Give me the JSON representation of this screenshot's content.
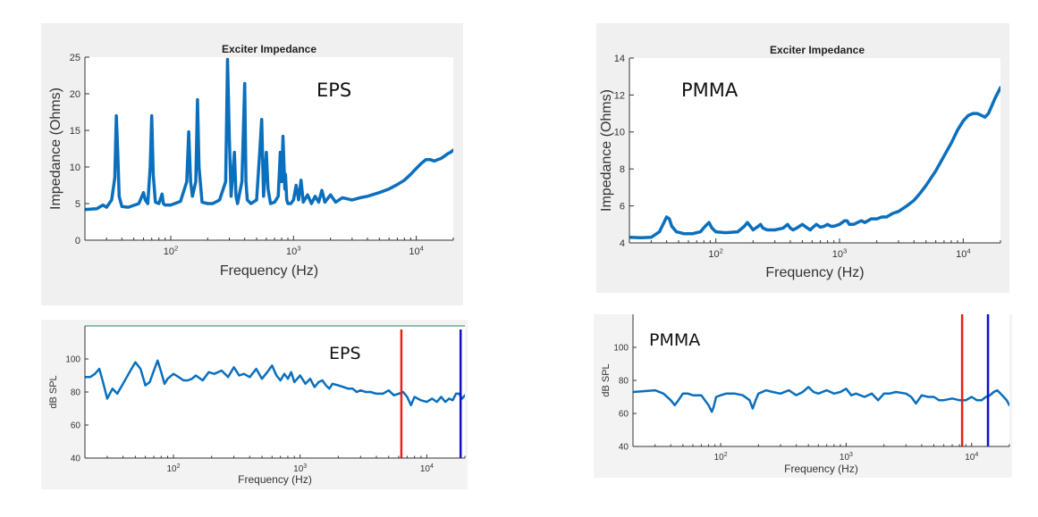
{
  "chart_data": [
    {
      "id": "eps-impedance",
      "type": "line",
      "title": "Exciter Impedance",
      "annotation": "EPS",
      "xlabel": "Frequency (Hz)",
      "ylabel": "Impedance (Ohms)",
      "xscale": "log",
      "xlim": [
        20,
        20000
      ],
      "ylim": [
        0,
        25
      ],
      "yticks": [
        0,
        5,
        10,
        15,
        20,
        25
      ],
      "xticks": [
        {
          "value": 100,
          "base": "10",
          "exp": "2"
        },
        {
          "value": 1000,
          "base": "10",
          "exp": "3"
        },
        {
          "value": 10000,
          "base": "10",
          "exp": "4"
        }
      ],
      "grid": false,
      "line_color": "#0a6fbd",
      "x": [
        20,
        25,
        28,
        30,
        33,
        35,
        36,
        37,
        38,
        40,
        45,
        55,
        60,
        62,
        65,
        68,
        70,
        72,
        75,
        80,
        85,
        87,
        90,
        100,
        120,
        135,
        140,
        145,
        150,
        160,
        165,
        170,
        180,
        200,
        220,
        250,
        280,
        290,
        300,
        310,
        330,
        340,
        350,
        380,
        400,
        410,
        420,
        450,
        500,
        530,
        550,
        570,
        600,
        620,
        650,
        700,
        750,
        780,
        800,
        820,
        850,
        860,
        880,
        900,
        950,
        1000,
        1050,
        1100,
        1150,
        1200,
        1300,
        1400,
        1500,
        1600,
        1700,
        1800,
        2000,
        2200,
        2500,
        3000,
        3500,
        4000,
        5000,
        6000,
        7000,
        8000,
        9000,
        10000,
        11000,
        12000,
        13000,
        14000,
        15000,
        16000,
        17000,
        18000,
        19000,
        20000
      ],
      "y": [
        4.2,
        4.3,
        4.8,
        4.5,
        5.5,
        8.5,
        17.0,
        12.0,
        6.0,
        4.6,
        4.5,
        5.0,
        6.5,
        5.5,
        5.0,
        10.0,
        17.0,
        9.0,
        5.2,
        5.0,
        6.3,
        5.0,
        4.8,
        4.8,
        5.3,
        8.0,
        14.8,
        8.0,
        6.0,
        8.0,
        19.2,
        10.0,
        5.2,
        5.0,
        5.0,
        5.5,
        8.0,
        24.7,
        14.0,
        6.0,
        12.0,
        6.0,
        5.0,
        8.0,
        21.4,
        8.0,
        5.5,
        5.0,
        5.5,
        12.0,
        16.5,
        6.0,
        12.0,
        7.0,
        5.0,
        5.2,
        6.0,
        12.0,
        8.0,
        14.2,
        7.0,
        9.0,
        5.5,
        5.0,
        5.0,
        5.5,
        7.5,
        5.5,
        8.2,
        5.2,
        6.2,
        5.0,
        6.0,
        5.2,
        6.8,
        5.2,
        6.2,
        5.2,
        5.8,
        5.5,
        5.8,
        6.0,
        6.5,
        7.0,
        7.6,
        8.2,
        9.0,
        9.8,
        10.5,
        11.0,
        11.0,
        10.8,
        11.0,
        11.2,
        11.5,
        11.8,
        12.0,
        12.3
      ]
    },
    {
      "id": "pmma-impedance",
      "type": "line",
      "title": "Exciter Impedance",
      "annotation": "PMMA",
      "xlabel": "Frequency (Hz)",
      "ylabel": "Impedance (Ohms)",
      "xscale": "log",
      "xlim": [
        20,
        20000
      ],
      "ylim": [
        4,
        14
      ],
      "yticks": [
        4,
        6,
        8,
        10,
        12,
        14
      ],
      "xticks": [
        {
          "value": 100,
          "base": "10",
          "exp": "2"
        },
        {
          "value": 1000,
          "base": "10",
          "exp": "3"
        },
        {
          "value": 10000,
          "base": "10",
          "exp": "4"
        }
      ],
      "grid": false,
      "line_color": "#0a6fbd",
      "x": [
        20,
        25,
        30,
        35,
        38,
        40,
        42,
        44,
        48,
        55,
        65,
        75,
        82,
        88,
        93,
        100,
        120,
        150,
        170,
        180,
        190,
        200,
        220,
        230,
        240,
        260,
        300,
        350,
        380,
        400,
        420,
        450,
        500,
        550,
        580,
        600,
        650,
        700,
        750,
        800,
        850,
        900,
        1000,
        1100,
        1150,
        1200,
        1300,
        1400,
        1500,
        1600,
        1700,
        1800,
        2000,
        2200,
        2400,
        2700,
        3000,
        3500,
        4000,
        4500,
        5000,
        6000,
        7000,
        8000,
        9000,
        10000,
        11000,
        12000,
        13000,
        14000,
        15000,
        16000,
        17000,
        18000,
        19000,
        20000
      ],
      "y": [
        4.3,
        4.28,
        4.3,
        4.6,
        5.1,
        5.4,
        5.3,
        4.9,
        4.6,
        4.5,
        4.5,
        4.6,
        4.9,
        5.1,
        4.8,
        4.6,
        4.55,
        4.6,
        4.9,
        5.1,
        4.9,
        4.7,
        4.9,
        5.0,
        4.8,
        4.7,
        4.7,
        4.8,
        5.0,
        4.8,
        4.7,
        4.8,
        5.0,
        4.8,
        4.7,
        4.8,
        5.0,
        4.85,
        4.9,
        5.0,
        4.9,
        4.9,
        5.0,
        5.2,
        5.2,
        5.0,
        5.0,
        5.1,
        5.2,
        5.1,
        5.2,
        5.3,
        5.3,
        5.4,
        5.4,
        5.6,
        5.7,
        6.0,
        6.3,
        6.7,
        7.1,
        7.9,
        8.7,
        9.4,
        10.1,
        10.6,
        10.9,
        11.0,
        11.0,
        10.9,
        10.8,
        11.0,
        11.4,
        11.8,
        12.1,
        12.4
      ]
    },
    {
      "id": "eps-spl",
      "type": "line",
      "title": "",
      "annotation": "EPS",
      "xlabel": "Frequency (Hz)",
      "ylabel": "dB SPL",
      "xscale": "log",
      "xlim": [
        20,
        20000
      ],
      "ylim": [
        40,
        120
      ],
      "yticks": [
        40,
        60,
        80,
        100
      ],
      "xticks": [
        {
          "value": 100,
          "base": "10",
          "exp": "2"
        },
        {
          "value": 1000,
          "base": "10",
          "exp": "3"
        },
        {
          "value": 10000,
          "base": "10",
          "exp": "4"
        }
      ],
      "grid": false,
      "line_color": "#0a6fbd",
      "markers": [
        {
          "x": 6300,
          "color": "#e8211b"
        },
        {
          "x": 18500,
          "color": "#1010c8"
        }
      ],
      "x": [
        20,
        22,
        24,
        26,
        28,
        30,
        33,
        36,
        40,
        45,
        50,
        55,
        60,
        65,
        70,
        75,
        80,
        85,
        90,
        100,
        110,
        120,
        130,
        140,
        150,
        170,
        190,
        210,
        240,
        270,
        300,
        330,
        360,
        400,
        450,
        500,
        550,
        600,
        650,
        700,
        750,
        800,
        850,
        900,
        1000,
        1100,
        1200,
        1300,
        1400,
        1500,
        1600,
        1700,
        1800,
        2000,
        2200,
        2400,
        2600,
        2800,
        3000,
        3300,
        3600,
        4000,
        4500,
        5000,
        5500,
        6000,
        6500,
        7000,
        7500,
        8000,
        9000,
        10000,
        11000,
        12000,
        13000,
        14000,
        15000,
        16000,
        17000,
        18000,
        19000,
        20000
      ],
      "y": [
        89,
        89,
        91,
        94,
        85,
        76,
        82,
        79,
        85,
        92,
        98,
        94,
        84,
        86,
        93,
        99,
        92,
        85,
        88,
        91,
        89,
        87,
        87,
        88,
        90,
        87,
        92,
        91,
        93,
        89,
        95,
        90,
        91,
        89,
        94,
        88,
        92,
        96,
        90,
        87,
        91,
        88,
        92,
        86,
        90,
        85,
        88,
        83,
        86,
        87,
        84,
        82,
        85,
        84,
        83,
        82,
        82,
        80,
        81,
        80,
        80,
        79,
        79,
        81,
        78,
        79,
        80,
        77,
        72,
        77,
        75,
        74,
        76,
        74,
        77,
        74,
        76,
        75,
        79,
        79,
        76,
        78
      ]
    },
    {
      "id": "pmma-spl",
      "type": "line",
      "title": "",
      "annotation": "PMMA",
      "xlabel": "Frequency (Hz)",
      "ylabel": "dB SPL",
      "xscale": "log",
      "xlim": [
        20,
        20000
      ],
      "ylim": [
        40,
        120
      ],
      "yticks": [
        40,
        60,
        80,
        100
      ],
      "xticks": [
        {
          "value": 100,
          "base": "10",
          "exp": "2"
        },
        {
          "value": 1000,
          "base": "10",
          "exp": "3"
        },
        {
          "value": 10000,
          "base": "10",
          "exp": "4"
        }
      ],
      "grid": false,
      "line_color": "#0a6fbd",
      "markers": [
        {
          "x": 8400,
          "color": "#e8211b"
        },
        {
          "x": 13500,
          "color": "#1010c8"
        }
      ],
      "x": [
        20,
        25,
        30,
        35,
        40,
        43,
        46,
        50,
        55,
        60,
        70,
        80,
        85,
        88,
        92,
        100,
        110,
        130,
        150,
        170,
        180,
        190,
        200,
        230,
        260,
        300,
        350,
        400,
        450,
        500,
        550,
        600,
        700,
        800,
        900,
        1000,
        1100,
        1200,
        1400,
        1600,
        1800,
        2000,
        2200,
        2500,
        3000,
        3300,
        3600,
        4000,
        4500,
        5000,
        5500,
        6000,
        7000,
        8000,
        9000,
        10000,
        11000,
        12000,
        13000,
        14000,
        15000,
        16000,
        17000,
        18000,
        19000,
        20000
      ],
      "y": [
        73,
        73.5,
        74,
        72,
        68,
        65,
        68,
        72,
        72,
        71,
        71,
        65,
        61,
        64,
        70,
        71,
        72,
        72,
        71,
        68,
        63,
        68,
        72,
        74,
        73,
        72,
        74,
        71,
        73,
        76,
        73,
        72,
        74,
        72,
        73,
        75,
        71,
        72,
        70,
        72,
        68,
        72,
        72,
        73,
        72,
        70,
        66,
        71,
        70,
        70,
        68,
        68,
        69,
        68,
        68,
        70,
        68,
        68,
        70,
        71,
        73,
        74,
        72,
        70,
        68,
        65
      ]
    }
  ]
}
